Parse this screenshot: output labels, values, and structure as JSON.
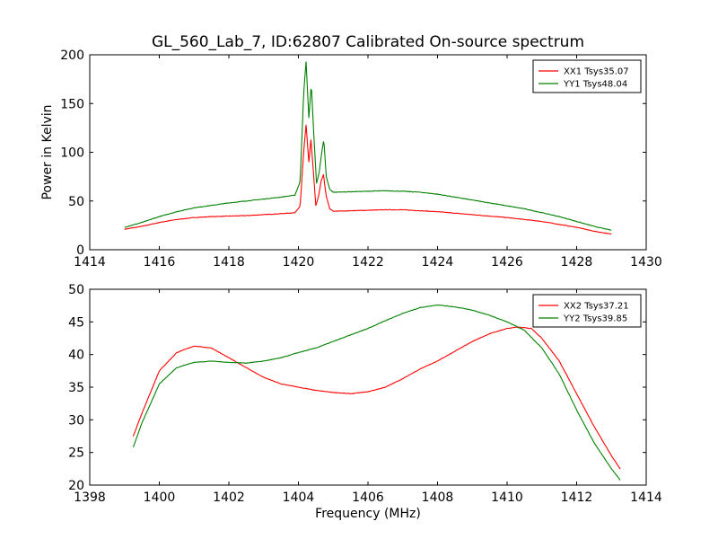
{
  "figure": {
    "title": "GL_560_Lab_7, ID:62807 Calibrated On-source spectrum"
  },
  "chart_data": [
    {
      "type": "line",
      "title": "GL_560_Lab_7, ID:62807 Calibrated On-source spectrum",
      "xlabel": "",
      "ylabel": "Power in Kelvin",
      "xlim": [
        1414,
        1430
      ],
      "ylim": [
        0,
        200
      ],
      "xticks": [
        1414,
        1416,
        1418,
        1420,
        1422,
        1424,
        1426,
        1428,
        1430
      ],
      "yticks": [
        0,
        50,
        100,
        150,
        200
      ],
      "grid": false,
      "legend_position": "top-right",
      "series": [
        {
          "name": "XX1 Tsys35.07",
          "color": "#ff0000",
          "x": [
            1415.0,
            1415.5,
            1416.0,
            1416.5,
            1417.0,
            1417.5,
            1418.0,
            1418.5,
            1419.0,
            1419.5,
            1419.9,
            1420.05,
            1420.15,
            1420.22,
            1420.3,
            1420.36,
            1420.42,
            1420.5,
            1420.58,
            1420.65,
            1420.72,
            1420.8,
            1420.9,
            1421.0,
            1421.5,
            1422.0,
            1422.5,
            1423.0,
            1423.5,
            1424.0,
            1424.5,
            1425.0,
            1425.5,
            1426.0,
            1426.5,
            1427.0,
            1427.5,
            1428.0,
            1428.5,
            1429.0
          ],
          "y": [
            21,
            24,
            28,
            31,
            33,
            34,
            34.5,
            35,
            36,
            37,
            38,
            45,
            100,
            128,
            90,
            113,
            85,
            45,
            55,
            70,
            77,
            55,
            42,
            39.5,
            40,
            40.5,
            41,
            41,
            40,
            39,
            37.5,
            36,
            34.5,
            33,
            31,
            29,
            26,
            23,
            19,
            16
          ]
        },
        {
          "name": "YY1 Tsys48.04",
          "color": "#008000",
          "x": [
            1415.0,
            1415.5,
            1416.0,
            1416.5,
            1417.0,
            1417.5,
            1418.0,
            1418.5,
            1419.0,
            1419.5,
            1419.9,
            1420.05,
            1420.15,
            1420.22,
            1420.3,
            1420.37,
            1420.44,
            1420.52,
            1420.6,
            1420.67,
            1420.73,
            1420.8,
            1420.9,
            1421.0,
            1421.5,
            1422.0,
            1422.5,
            1423.0,
            1423.5,
            1424.0,
            1424.5,
            1425.0,
            1425.5,
            1426.0,
            1426.5,
            1427.0,
            1427.5,
            1428.0,
            1428.5,
            1429.0
          ],
          "y": [
            23,
            28,
            34,
            39,
            43,
            45.5,
            48,
            50,
            52,
            54,
            56,
            70,
            160,
            193,
            135,
            170,
            120,
            68,
            80,
            100,
            113,
            75,
            62,
            59,
            59.5,
            60,
            60.5,
            60,
            59,
            57,
            54,
            51,
            48,
            45,
            42,
            38,
            34,
            29,
            24,
            20
          ]
        }
      ]
    },
    {
      "type": "line",
      "title": "",
      "xlabel": "Frequency (MHz)",
      "ylabel": "",
      "xlim": [
        1398,
        1414
      ],
      "ylim": [
        20,
        50
      ],
      "xticks": [
        1398,
        1400,
        1402,
        1404,
        1406,
        1408,
        1410,
        1412,
        1414
      ],
      "yticks": [
        20,
        25,
        30,
        35,
        40,
        45,
        50
      ],
      "grid": false,
      "legend_position": "top-right",
      "series": [
        {
          "name": "XX2 Tsys37.21",
          "color": "#ff0000",
          "x": [
            1399.25,
            1399.5,
            1400.0,
            1400.5,
            1401.0,
            1401.5,
            1402.0,
            1402.5,
            1403.0,
            1403.5,
            1404.0,
            1404.5,
            1405.0,
            1405.5,
            1406.0,
            1406.5,
            1407.0,
            1407.5,
            1408.0,
            1408.5,
            1409.0,
            1409.5,
            1410.0,
            1410.3,
            1410.7,
            1411.0,
            1411.5,
            1412.0,
            1412.5,
            1413.0,
            1413.25
          ],
          "y": [
            27.5,
            31,
            37.5,
            40.3,
            41.3,
            41,
            39.5,
            38,
            36.5,
            35.5,
            35,
            34.5,
            34.2,
            34,
            34.3,
            35,
            36.3,
            37.8,
            39,
            40.5,
            42,
            43.2,
            44,
            44.2,
            44,
            42.5,
            39,
            34,
            29,
            24.5,
            22.5
          ]
        },
        {
          "name": "YY2 Tsys39.85",
          "color": "#008000",
          "x": [
            1399.25,
            1399.5,
            1400.0,
            1400.5,
            1401.0,
            1401.5,
            1402.0,
            1402.5,
            1403.0,
            1403.5,
            1404.0,
            1404.5,
            1405.0,
            1405.5,
            1406.0,
            1406.5,
            1407.0,
            1407.5,
            1408.0,
            1408.5,
            1409.0,
            1409.5,
            1410.0,
            1410.5,
            1411.0,
            1411.5,
            1412.0,
            1412.5,
            1413.0,
            1413.25
          ],
          "y": [
            25.8,
            29.5,
            35.5,
            38,
            38.8,
            39,
            38.8,
            38.7,
            39,
            39.5,
            40.3,
            41,
            42,
            43,
            44,
            45.2,
            46.3,
            47.2,
            47.6,
            47.3,
            46.8,
            46,
            45,
            43.7,
            41,
            37,
            31.5,
            26.5,
            22.5,
            20.8
          ]
        }
      ]
    }
  ]
}
